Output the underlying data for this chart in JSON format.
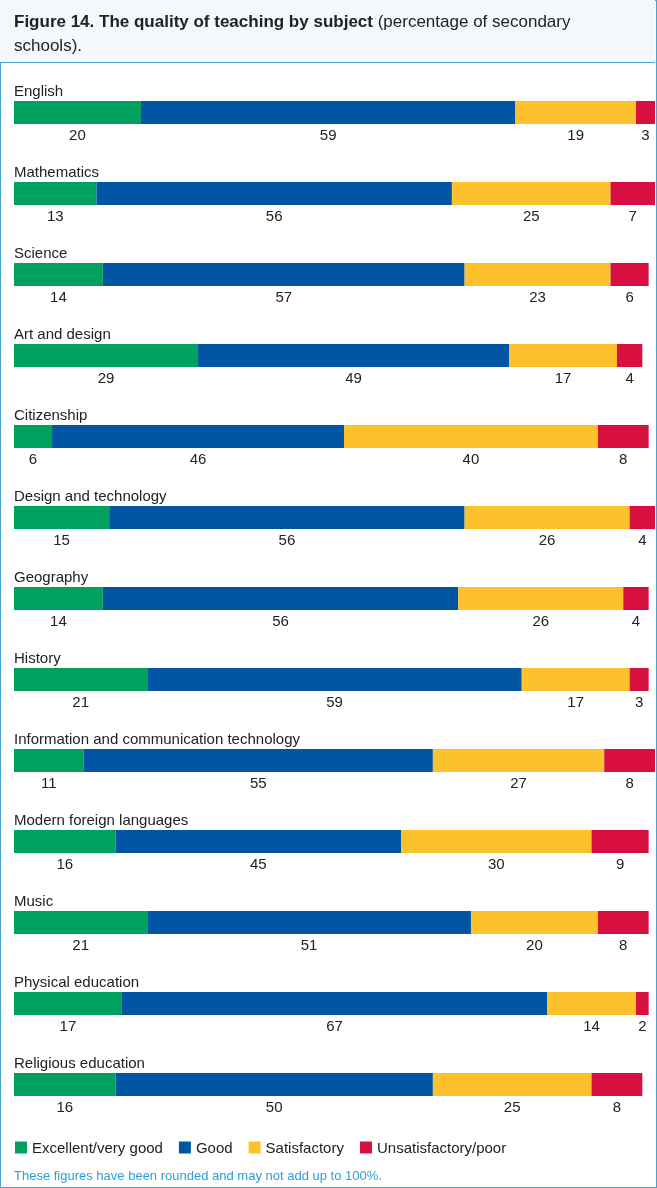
{
  "chart_data": {
    "type": "bar",
    "orientation": "horizontal",
    "stacked": true,
    "data_labels": true,
    "legend": "bottom left",
    "title": "Figure 14. The quality of teaching by subject",
    "subtitle": "(percentage of secondary schools).",
    "categories": [
      "English",
      "Mathematics",
      "Science",
      "Art and design",
      "Citizenship",
      "Design and technology",
      "Geography",
      "History",
      "Information and communication technology",
      "Modern foreign languages",
      "Music",
      "Physical education",
      "Religious education"
    ],
    "series": [
      {
        "name": "Excellent/very good",
        "color": "#00a05e",
        "values": [
          20,
          13,
          14,
          29,
          6,
          15,
          14,
          21,
          11,
          16,
          21,
          17,
          16
        ]
      },
      {
        "name": "Good",
        "color": "#0056a2",
        "values": [
          59,
          56,
          57,
          49,
          46,
          56,
          56,
          59,
          55,
          45,
          51,
          67,
          50
        ]
      },
      {
        "name": "Satisfactory",
        "color": "#fdc12b",
        "values": [
          19,
          25,
          23,
          17,
          40,
          26,
          26,
          17,
          27,
          30,
          20,
          14,
          25
        ]
      },
      {
        "name": "Unsatisfactory/poor",
        "color": "#d7103f",
        "values": [
          3,
          7,
          6,
          4,
          8,
          4,
          4,
          3,
          8,
          9,
          8,
          2,
          8
        ]
      }
    ],
    "annotations": [
      "These figures have been rounded and may not add up to 100%."
    ]
  }
}
